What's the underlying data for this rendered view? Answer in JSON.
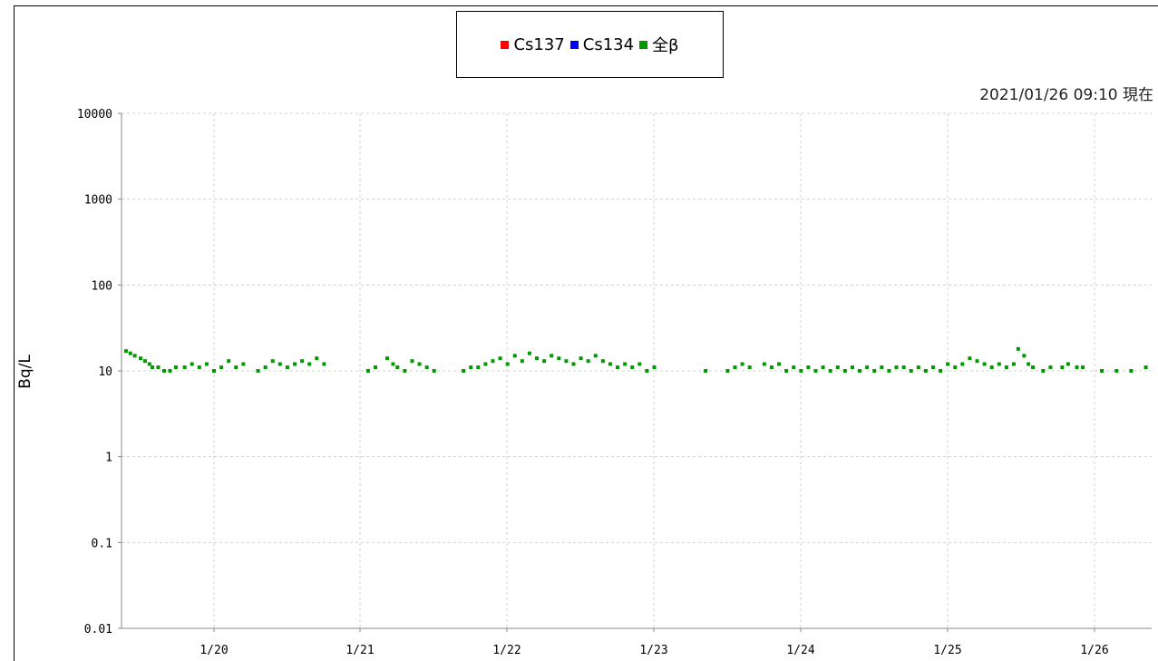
{
  "timestamp": "2021/01/26 09:10 現在",
  "chart_data": {
    "type": "scatter",
    "title": "",
    "xlabel": "",
    "ylabel": "Bq/L",
    "yscale": "log",
    "ylim": [
      0.01,
      10000
    ],
    "y_ticks": [
      "10000",
      "1000",
      "100",
      "10",
      "1",
      "0.1",
      "0.01"
    ],
    "x_tick_labels": [
      "1/20",
      "1/21",
      "1/22",
      "1/23",
      "1/24",
      "1/25",
      "1/26"
    ],
    "xlim_days": [
      19.38,
      26.4
    ],
    "grid": true,
    "legend_position": "top-center",
    "series": [
      {
        "name": "Cs137",
        "color": "#ff0000",
        "points": []
      },
      {
        "name": "Cs134",
        "color": "#0000ff",
        "points": []
      },
      {
        "name": "全β",
        "color": "#009900",
        "points": [
          [
            19.4,
            17
          ],
          [
            19.43,
            16
          ],
          [
            19.46,
            15
          ],
          [
            19.5,
            14
          ],
          [
            19.53,
            13
          ],
          [
            19.56,
            12
          ],
          [
            19.58,
            11
          ],
          [
            19.62,
            11
          ],
          [
            19.66,
            10
          ],
          [
            19.7,
            10
          ],
          [
            19.74,
            11
          ],
          [
            19.8,
            11
          ],
          [
            19.85,
            12
          ],
          [
            19.9,
            11
          ],
          [
            19.95,
            12
          ],
          [
            20.0,
            10
          ],
          [
            20.05,
            11
          ],
          [
            20.1,
            13
          ],
          [
            20.15,
            11
          ],
          [
            20.2,
            12
          ],
          [
            20.3,
            10
          ],
          [
            20.35,
            11
          ],
          [
            20.4,
            13
          ],
          [
            20.45,
            12
          ],
          [
            20.5,
            11
          ],
          [
            20.55,
            12
          ],
          [
            20.6,
            13
          ],
          [
            20.65,
            12
          ],
          [
            20.7,
            14
          ],
          [
            20.75,
            12
          ],
          [
            21.05,
            10
          ],
          [
            21.1,
            11
          ],
          [
            21.18,
            14
          ],
          [
            21.22,
            12
          ],
          [
            21.25,
            11
          ],
          [
            21.3,
            10
          ],
          [
            21.35,
            13
          ],
          [
            21.4,
            12
          ],
          [
            21.45,
            11
          ],
          [
            21.5,
            10
          ],
          [
            21.7,
            10
          ],
          [
            21.75,
            11
          ],
          [
            21.8,
            11
          ],
          [
            21.85,
            12
          ],
          [
            21.9,
            13
          ],
          [
            21.95,
            14
          ],
          [
            22.0,
            12
          ],
          [
            22.05,
            15
          ],
          [
            22.1,
            13
          ],
          [
            22.15,
            16
          ],
          [
            22.2,
            14
          ],
          [
            22.25,
            13
          ],
          [
            22.3,
            15
          ],
          [
            22.35,
            14
          ],
          [
            22.4,
            13
          ],
          [
            22.45,
            12
          ],
          [
            22.5,
            14
          ],
          [
            22.55,
            13
          ],
          [
            22.6,
            15
          ],
          [
            22.65,
            13
          ],
          [
            22.7,
            12
          ],
          [
            22.75,
            11
          ],
          [
            22.8,
            12
          ],
          [
            22.85,
            11
          ],
          [
            22.9,
            12
          ],
          [
            22.95,
            10
          ],
          [
            23.0,
            11
          ],
          [
            23.35,
            10
          ],
          [
            23.5,
            10
          ],
          [
            23.55,
            11
          ],
          [
            23.6,
            12
          ],
          [
            23.65,
            11
          ],
          [
            23.75,
            12
          ],
          [
            23.8,
            11
          ],
          [
            23.85,
            12
          ],
          [
            23.9,
            10
          ],
          [
            23.95,
            11
          ],
          [
            24.0,
            10
          ],
          [
            24.05,
            11
          ],
          [
            24.1,
            10
          ],
          [
            24.15,
            11
          ],
          [
            24.2,
            10
          ],
          [
            24.25,
            11
          ],
          [
            24.3,
            10
          ],
          [
            24.35,
            11
          ],
          [
            24.4,
            10
          ],
          [
            24.45,
            11
          ],
          [
            24.5,
            10
          ],
          [
            24.55,
            11
          ],
          [
            24.6,
            10
          ],
          [
            24.65,
            11
          ],
          [
            24.7,
            11
          ],
          [
            24.75,
            10
          ],
          [
            24.8,
            11
          ],
          [
            24.85,
            10
          ],
          [
            24.9,
            11
          ],
          [
            24.95,
            10
          ],
          [
            25.0,
            12
          ],
          [
            25.05,
            11
          ],
          [
            25.1,
            12
          ],
          [
            25.15,
            14
          ],
          [
            25.2,
            13
          ],
          [
            25.25,
            12
          ],
          [
            25.3,
            11
          ],
          [
            25.35,
            12
          ],
          [
            25.4,
            11
          ],
          [
            25.45,
            12
          ],
          [
            25.48,
            18
          ],
          [
            25.52,
            15
          ],
          [
            25.55,
            12
          ],
          [
            25.58,
            11
          ],
          [
            25.65,
            10
          ],
          [
            25.7,
            11
          ],
          [
            25.78,
            11
          ],
          [
            25.82,
            12
          ],
          [
            25.88,
            11
          ],
          [
            25.92,
            11
          ],
          [
            26.05,
            10
          ],
          [
            26.15,
            10
          ],
          [
            26.25,
            10
          ],
          [
            26.35,
            11
          ]
        ]
      }
    ]
  }
}
